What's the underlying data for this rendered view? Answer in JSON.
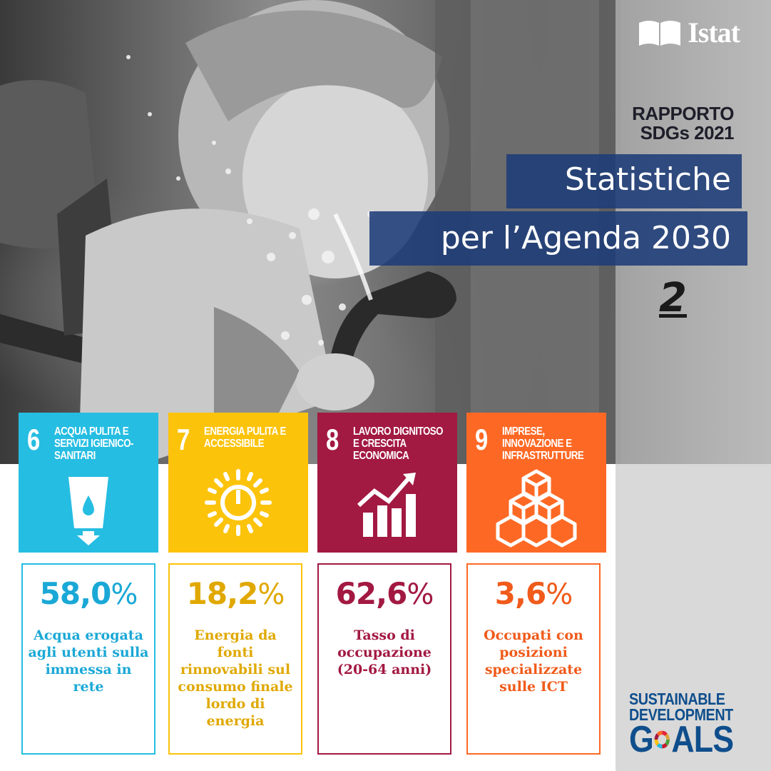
{
  "brand": {
    "logo_text": "Istat",
    "logo_icon": "open-book-icon"
  },
  "report": {
    "label_line1": "RAPPORTO",
    "label_line2": "SDGs 2021",
    "title_line1": "Statistiche",
    "title_line2": "per l’Agenda 2030",
    "volume": "2"
  },
  "goals": [
    {
      "number": "6",
      "name": "ACQUA PULITA E SERVIZI IGIENICO-SANITARI",
      "icon": "water-glass-icon",
      "color": "#26bde2",
      "text_color": "#1aa8d6",
      "value": "58,0",
      "unit": "%",
      "description": "Acqua erogata agli utenti sulla immessa in rete"
    },
    {
      "number": "7",
      "name": "ENERGIA PULITA E ACCESSIBILE",
      "icon": "sun-power-icon",
      "color": "#fcc30b",
      "text_color": "#e0a800",
      "value": "18,2",
      "unit": "%",
      "description": "Energia da fonti rinnovabili sul consumo finale lordo di energia"
    },
    {
      "number": "8",
      "name": "LAVORO DIGNITOSO E CRESCITA ECONOMICA",
      "icon": "growth-chart-icon",
      "color": "#a21942",
      "text_color": "#a21942",
      "value": "62,6",
      "unit": "%",
      "description": "Tasso di occupazione (20-64 anni)"
    },
    {
      "number": "9",
      "name": "IMPRESE, INNOVAZIONE E INFRASTRUTTURE",
      "icon": "cubes-icon",
      "color": "#fd6925",
      "text_color": "#f05a1a",
      "value": "3,6",
      "unit": "%",
      "description": "Occupati con posizioni specializzate sulle ICT"
    }
  ],
  "sdg_logo": {
    "line1": "SUSTAINABLE",
    "line2": "DEVELOPMENT",
    "goals_g": "G",
    "goals_rest": "ALS",
    "icon": "sdg-color-wheel-icon"
  }
}
